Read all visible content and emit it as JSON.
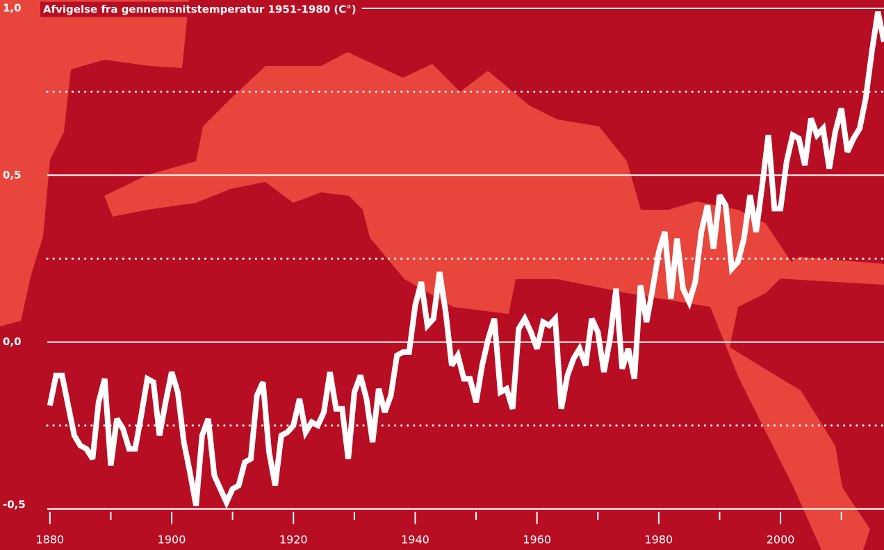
{
  "chart_data": {
    "type": "line",
    "title": "Afvigelse fra gennemsnitstemperatur 1951-1980 (C°)",
    "color": "#ffffff",
    "x": [
      1880,
      1881,
      1882,
      1883,
      1884,
      1885,
      1886,
      1887,
      1888,
      1889,
      1890,
      1891,
      1892,
      1893,
      1894,
      1895,
      1896,
      1897,
      1898,
      1899,
      1900,
      1901,
      1902,
      1903,
      1904,
      1905,
      1906,
      1907,
      1908,
      1909,
      1910,
      1911,
      1912,
      1913,
      1914,
      1915,
      1916,
      1917,
      1918,
      1919,
      1920,
      1921,
      1922,
      1923,
      1924,
      1925,
      1926,
      1927,
      1928,
      1929,
      1930,
      1931,
      1932,
      1933,
      1934,
      1935,
      1936,
      1937,
      1938,
      1939,
      1940,
      1941,
      1942,
      1943,
      1944,
      1945,
      1946,
      1947,
      1948,
      1949,
      1950,
      1951,
      1952,
      1953,
      1954,
      1955,
      1956,
      1957,
      1958,
      1959,
      1960,
      1961,
      1962,
      1963,
      1964,
      1965,
      1966,
      1967,
      1968,
      1969,
      1970,
      1971,
      1972,
      1973,
      1974,
      1975,
      1976,
      1977,
      1978,
      1979,
      1980,
      1981,
      1982,
      1983,
      1984,
      1985,
      1986,
      1987,
      1988,
      1989,
      1990,
      1991,
      1992,
      1993,
      1994,
      1995,
      1996,
      1997,
      1998,
      1999,
      2000,
      2001,
      2002,
      2003,
      2004,
      2005,
      2006,
      2007,
      2008,
      2009,
      2010,
      2011,
      2012,
      2013,
      2014,
      2015,
      2016,
      2017
    ],
    "values": [
      -0.19,
      -0.1,
      -0.1,
      -0.19,
      -0.28,
      -0.31,
      -0.32,
      -0.35,
      -0.18,
      -0.11,
      -0.37,
      -0.23,
      -0.26,
      -0.32,
      -0.32,
      -0.22,
      -0.11,
      -0.12,
      -0.28,
      -0.18,
      -0.09,
      -0.15,
      -0.3,
      -0.39,
      -0.49,
      -0.28,
      -0.23,
      -0.4,
      -0.44,
      -0.48,
      -0.44,
      -0.43,
      -0.36,
      -0.35,
      -0.16,
      -0.12,
      -0.33,
      -0.43,
      -0.28,
      -0.27,
      -0.25,
      -0.17,
      -0.27,
      -0.24,
      -0.25,
      -0.21,
      -0.09,
      -0.2,
      -0.2,
      -0.35,
      -0.15,
      -0.1,
      -0.17,
      -0.3,
      -0.14,
      -0.21,
      -0.16,
      -0.04,
      -0.03,
      -0.03,
      0.11,
      0.18,
      0.05,
      0.07,
      0.21,
      0.09,
      -0.07,
      -0.04,
      -0.11,
      -0.11,
      -0.18,
      -0.07,
      0.01,
      0.07,
      -0.15,
      -0.14,
      -0.2,
      0.04,
      0.07,
      0.03,
      -0.02,
      0.06,
      0.05,
      0.07,
      -0.2,
      -0.1,
      -0.05,
      -0.02,
      -0.07,
      0.07,
      0.03,
      -0.09,
      0.01,
      0.16,
      -0.08,
      -0.02,
      -0.11,
      0.17,
      0.06,
      0.16,
      0.27,
      0.33,
      0.13,
      0.31,
      0.16,
      0.12,
      0.18,
      0.33,
      0.41,
      0.28,
      0.44,
      0.41,
      0.22,
      0.24,
      0.31,
      0.44,
      0.33,
      0.47,
      0.62,
      0.4,
      0.4,
      0.54,
      0.62,
      0.61,
      0.53,
      0.67,
      0.62,
      0.64,
      0.52,
      0.63,
      0.7,
      0.57,
      0.61,
      0.64,
      0.73,
      0.87,
      0.99,
      0.9
    ],
    "xlim": [
      1871.8,
      2017
    ],
    "ylim": [
      -0.623,
      1.025
    ],
    "xticks": [
      1880,
      1900,
      1920,
      1940,
      1960,
      1980,
      2000
    ],
    "minor_xticks": [
      1890,
      1910,
      1930,
      1950,
      1970,
      1990,
      2010
    ],
    "yticks": [
      {
        "value": 1,
        "label": "1,0"
      },
      {
        "value": 0.5,
        "label": "0,5"
      },
      {
        "value": 0,
        "label": "0,0"
      },
      {
        "value": -0.5,
        "label": "-0,5"
      }
    ],
    "dotted_grid": [
      0.75,
      0.25,
      -0.25
    ],
    "grid": true
  }
}
